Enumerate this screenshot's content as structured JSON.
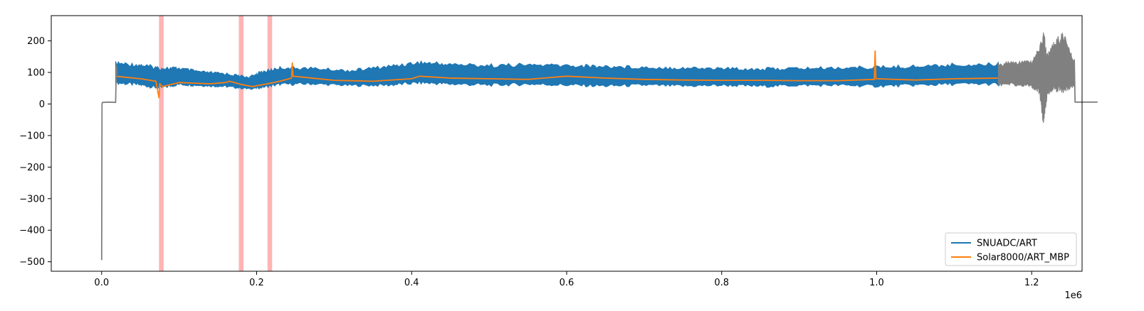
{
  "chart_data": {
    "type": "line",
    "title": "",
    "xlabel": "",
    "ylabel": "",
    "x_offset_label": "1e6",
    "xlim": [
      -0.065,
      1.265
    ],
    "ylim": [
      -530,
      280
    ],
    "x_ticks": [
      0.0,
      0.2,
      0.4,
      0.6,
      0.8,
      1.0,
      1.2
    ],
    "x_tick_labels": [
      "0.0",
      "0.2",
      "0.4",
      "0.6",
      "0.8",
      "1.0",
      "1.2"
    ],
    "y_ticks": [
      200,
      100,
      0,
      -100,
      -200,
      -300,
      -400,
      -500
    ],
    "y_tick_labels": [
      "200",
      "100",
      "0",
      "−100",
      "−200",
      "−300",
      "−400",
      "−500"
    ],
    "grid": false,
    "legend_position": "lower-right",
    "colors": {
      "art": "#1f77b4",
      "art_mbp": "#ff7f0e",
      "raw": "#808080",
      "highlight": "#ff9999"
    },
    "highlight_spans": [
      [
        0.074,
        0.08
      ],
      [
        0.177,
        0.183
      ],
      [
        0.214,
        0.22
      ]
    ],
    "series": [
      {
        "name": "SNUADC/ART",
        "kind": "band",
        "x": [
          0.018,
          0.05,
          0.075,
          0.1,
          0.13,
          0.16,
          0.19,
          0.205,
          0.23,
          0.27,
          0.32,
          0.37,
          0.41,
          0.45,
          0.5,
          0.55,
          0.6,
          0.65,
          0.7,
          0.75,
          0.8,
          0.85,
          0.9,
          0.95,
          1.0,
          1.05,
          1.1,
          1.157
        ],
        "upper": [
          135,
          130,
          120,
          118,
          105,
          100,
          88,
          105,
          120,
          118,
          110,
          125,
          138,
          132,
          128,
          130,
          128,
          125,
          122,
          120,
          118,
          116,
          118,
          120,
          122,
          125,
          130,
          132
        ],
        "lower": [
          62,
          55,
          45,
          58,
          55,
          52,
          45,
          48,
          58,
          60,
          55,
          55,
          62,
          58,
          55,
          58,
          55,
          52,
          55,
          52,
          55,
          52,
          55,
          55,
          52,
          55,
          58,
          58
        ]
      },
      {
        "name": "Solar8000/ART_MBP",
        "kind": "line",
        "x": [
          0.018,
          0.03,
          0.05,
          0.07,
          0.074,
          0.075,
          0.078,
          0.09,
          0.1,
          0.12,
          0.14,
          0.16,
          0.165,
          0.18,
          0.195,
          0.2,
          0.21,
          0.23,
          0.245,
          0.246,
          0.247,
          0.26,
          0.3,
          0.35,
          0.4,
          0.41,
          0.45,
          0.5,
          0.55,
          0.6,
          0.65,
          0.7,
          0.75,
          0.8,
          0.85,
          0.9,
          0.95,
          0.997,
          0.998,
          0.999,
          1.05,
          1.1,
          1.157
        ],
        "y": [
          88,
          85,
          80,
          72,
          20,
          65,
          55,
          62,
          68,
          66,
          64,
          68,
          72,
          62,
          55,
          58,
          62,
          72,
          82,
          130,
          88,
          85,
          75,
          72,
          80,
          88,
          82,
          80,
          78,
          88,
          82,
          78,
          76,
          75,
          75,
          74,
          74,
          78,
          168,
          80,
          76,
          80,
          82
        ]
      },
      {
        "name": "",
        "kind": "line",
        "x": [
          0.0,
          0.0005,
          0.001,
          0.002,
          0.01,
          0.018,
          0.019,
          0.02
        ],
        "y": [
          -495,
          0,
          5,
          5,
          6,
          5,
          122,
          95
        ]
      },
      {
        "name": "",
        "kind": "band",
        "x": [
          1.157,
          1.18,
          1.2,
          1.21,
          1.215,
          1.22,
          1.23,
          1.24,
          1.255
        ],
        "upper": [
          130,
          140,
          140,
          185,
          245,
          160,
          205,
          235,
          140
        ],
        "lower": [
          58,
          55,
          50,
          30,
          -72,
          20,
          40,
          30,
          55
        ]
      },
      {
        "name": "",
        "kind": "line",
        "x": [
          1.255,
          1.256,
          1.285
        ],
        "y": [
          140,
          6,
          6
        ]
      }
    ]
  }
}
